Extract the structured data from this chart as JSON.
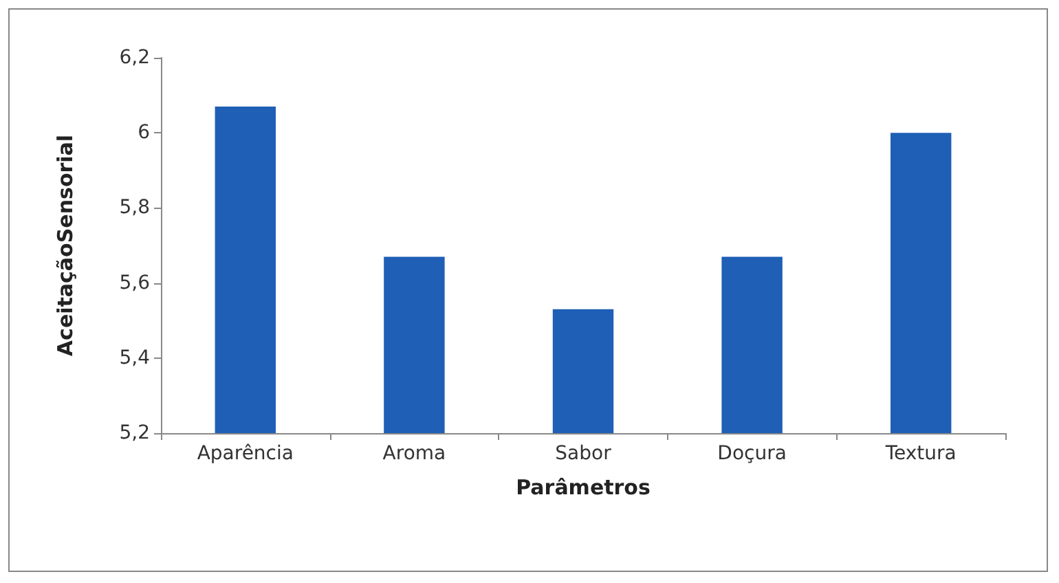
{
  "chart_data": {
    "type": "bar",
    "xlabel": "Parâmetros",
    "ylabel": "AceitaçãoSensorial",
    "categories": [
      "Aparência",
      "Aroma",
      "Sabor",
      "Doçura",
      "Textura"
    ],
    "values": [
      6.07,
      5.67,
      5.53,
      5.67,
      6.0
    ],
    "color": "#1f5fb5",
    "ylim": [
      5.2,
      6.2
    ],
    "yticks": [
      {
        "value": 5.2,
        "label": "5,2"
      },
      {
        "value": 5.4,
        "label": "5,4"
      },
      {
        "value": 5.6,
        "label": "5,6"
      },
      {
        "value": 5.8,
        "label": "5,8"
      },
      6,
      {
        "value": 6.2,
        "label": "6,2"
      }
    ],
    "grid": false
  }
}
